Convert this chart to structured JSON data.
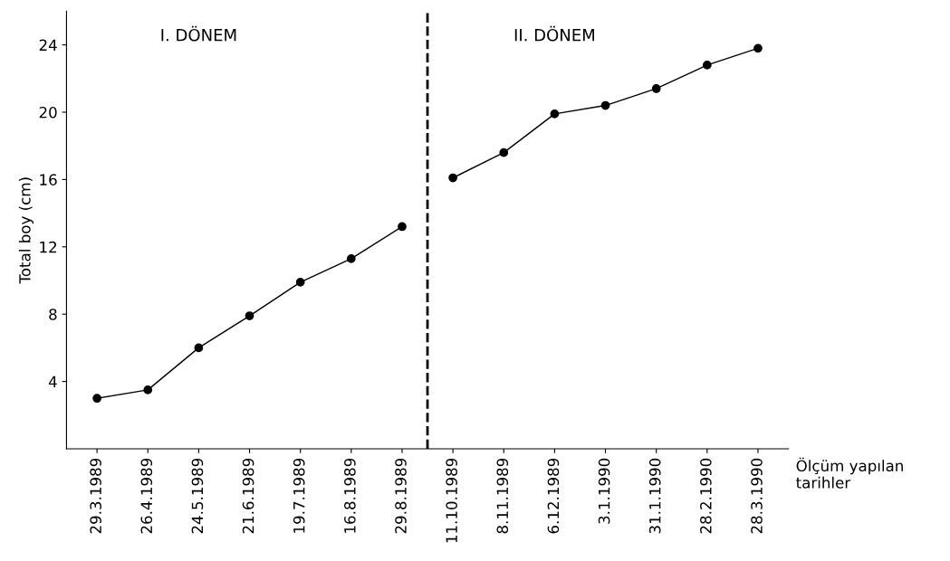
{
  "chart_data": {
    "type": "line",
    "ylabel": "Total boy (cm)",
    "xlabel": "Ölçüm yapılan tarihler",
    "categories": [
      "29.3.1989",
      "26.4.1989",
      "24.5.1989",
      "21.6.1989",
      "19.7.1989",
      "16.8.1989",
      "29.8.1989",
      "11.10.1989",
      "8.11.1989",
      "6.12.1989",
      "3.1.1990",
      "31.1.1990",
      "28.2.1990",
      "28.3.1990"
    ],
    "series": [
      {
        "color": "#000000",
        "values": [
          3.0,
          3.5,
          6.0,
          7.9,
          9.9,
          11.3,
          13.2,
          null,
          null,
          null,
          null,
          null,
          null,
          null
        ]
      },
      {
        "color": "#000000",
        "values": [
          null,
          null,
          null,
          null,
          null,
          null,
          null,
          16.1,
          17.6,
          19.9,
          20.4,
          21.4,
          22.8,
          23.8
        ]
      }
    ],
    "annotations": [
      "I. DÖNEM",
      "II. DÖNEM"
    ],
    "ylim": [
      0,
      26
    ],
    "yticks": [
      4,
      8,
      12,
      16,
      20,
      24
    ],
    "marker": "circle",
    "line_style": "solid",
    "grid": false,
    "legend": false
  }
}
